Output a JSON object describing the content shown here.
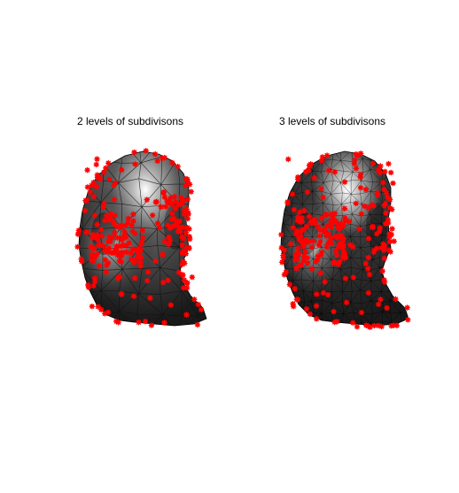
{
  "figure": {
    "panels": [
      {
        "id": "panel-left",
        "title": "2 levels of subdivisons",
        "subdivision_levels": 2,
        "mesh_density": 9,
        "mesh_color": "#5a5a5a",
        "edge_color": "#111111",
        "highlight_color": "#ffffff",
        "marker_color": "#ff0000",
        "marker_count": 260,
        "seed": 7
      },
      {
        "id": "panel-right",
        "title": "3 levels of subdivisons",
        "subdivision_levels": 3,
        "mesh_density": 18,
        "mesh_color": "#3c3c3c",
        "edge_color": "#000000",
        "highlight_color": "#ffffff",
        "marker_color": "#ff0000",
        "marker_count": 260,
        "seed": 11
      }
    ]
  }
}
